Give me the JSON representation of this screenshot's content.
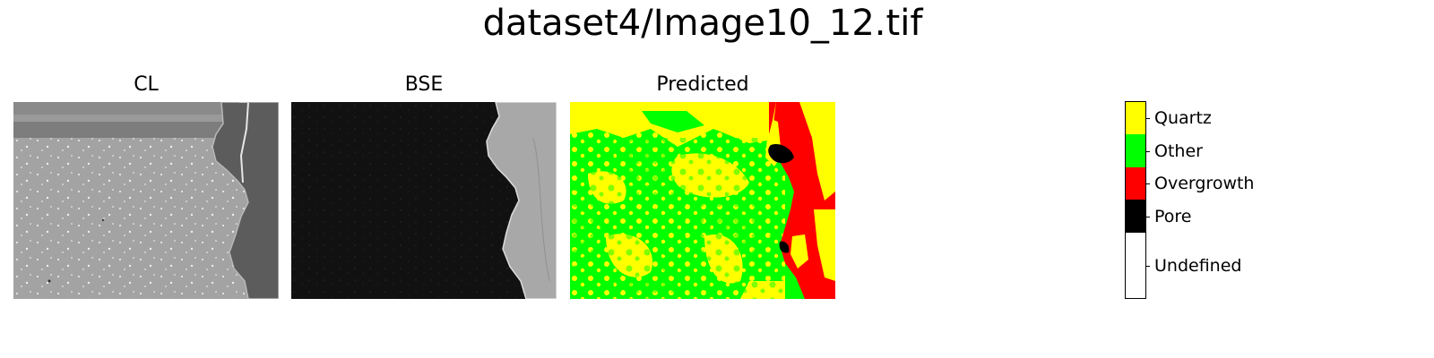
{
  "figure": {
    "title": "dataset4/Image10_12.tif"
  },
  "panels": [
    {
      "title": "CL"
    },
    {
      "title": "BSE"
    },
    {
      "title": "Predicted"
    }
  ],
  "colorbar": {
    "classes": [
      {
        "label": "Quartz",
        "color": "#ffff00"
      },
      {
        "label": "Other",
        "color": "#00ff00"
      },
      {
        "label": "Overgrowth",
        "color": "#ff0000"
      },
      {
        "label": "Pore",
        "color": "#000000"
      },
      {
        "label": "Undefined",
        "color": "#ffffff"
      }
    ]
  }
}
